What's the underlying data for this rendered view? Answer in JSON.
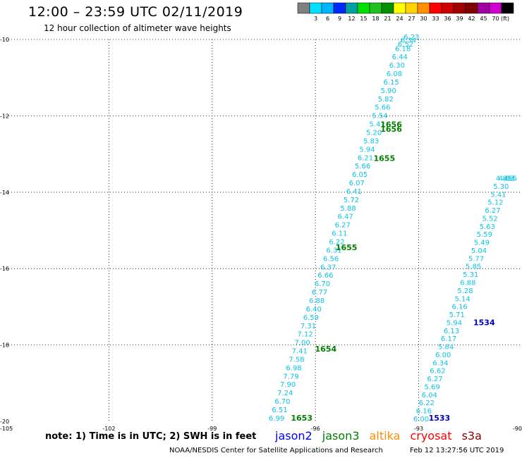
{
  "header": {
    "title": "12:00 – 23:59 UTC 02/11/2019",
    "subtitle": "12 hour collection of altimeter wave heights"
  },
  "colorbar": {
    "unit": "(ft)",
    "bins": [
      {
        "color": "#808080",
        "label": ""
      },
      {
        "color": "#00e0ff",
        "label": "3"
      },
      {
        "color": "#00b4ff",
        "label": "6"
      },
      {
        "color": "#0028ff",
        "label": "9"
      },
      {
        "color": "#00a0a0",
        "label": "12"
      },
      {
        "color": "#00e000",
        "label": "15"
      },
      {
        "color": "#20c020",
        "label": "18"
      },
      {
        "color": "#009000",
        "label": "21"
      },
      {
        "color": "#ffff00",
        "label": "24"
      },
      {
        "color": "#ffd200",
        "label": "27"
      },
      {
        "color": "#ff9000",
        "label": "30"
      },
      {
        "color": "#ff0000",
        "label": "33"
      },
      {
        "color": "#d00000",
        "label": "36"
      },
      {
        "color": "#a00000",
        "label": "39"
      },
      {
        "color": "#800000",
        "label": "42"
      },
      {
        "color": "#a000a0",
        "label": "45"
      },
      {
        "color": "#d000d0",
        "label": "70"
      },
      {
        "color": "#000000",
        "label": ""
      }
    ]
  },
  "chart_data": {
    "type": "scatter",
    "title": "12:00 – 23:59 UTC 02/11/2019",
    "subtitle": "12 hour collection of altimeter wave heights",
    "xlim": [
      -105,
      -90
    ],
    "ylim": [
      -20,
      -10
    ],
    "x_ticks": [
      "-105",
      "-102",
      "-99",
      "-96",
      "-93",
      "-90"
    ],
    "y_ticks": [
      "-10",
      "-12",
      "-14",
      "-16",
      "-18",
      "-20"
    ],
    "grid": true,
    "value_color": "#0bc4e6",
    "tracks": [
      {
        "name": "track_west",
        "x": [
          -97.13,
          -97.04,
          -96.96,
          -96.88,
          -96.8,
          -96.71,
          -96.63,
          -96.55,
          -96.46,
          -96.38,
          -96.3,
          -96.21,
          -96.13,
          -96.05,
          -95.96,
          -95.88,
          -95.8,
          -95.71,
          -95.63,
          -95.55,
          -95.46,
          -95.38,
          -95.3,
          -95.21,
          -95.13,
          -95.05,
          -94.96,
          -94.88,
          -94.8,
          -94.71,
          -94.63,
          -94.55,
          -94.5,
          -94.38,
          -94.3,
          -94.21,
          -94.13,
          -94.05,
          -93.96,
          -93.88,
          -93.8,
          -93.71,
          -93.63,
          -93.55,
          -93.46,
          -93.38,
          -93.3,
          -93.21
        ],
        "y": [
          -19.98,
          -19.76,
          -19.54,
          -19.32,
          -19.1,
          -18.88,
          -18.66,
          -18.44,
          -18.22,
          -18.0,
          -17.78,
          -17.56,
          -17.34,
          -17.12,
          -16.9,
          -16.68,
          -16.46,
          -16.24,
          -16.02,
          -15.8,
          -15.58,
          -15.36,
          -15.14,
          -14.92,
          -14.7,
          -14.48,
          -14.26,
          -14.04,
          -13.82,
          -13.6,
          -13.38,
          -13.16,
          -12.94,
          -12.72,
          -12.5,
          -12.28,
          -12.06,
          -11.84,
          -11.62,
          -11.4,
          -11.18,
          -10.96,
          -10.74,
          -10.52,
          -10.3,
          -10.18,
          -10.08,
          -10.0
        ],
        "values": [
          "6.99",
          "6.51",
          "6.70",
          "7.24",
          "7.90",
          "7.79",
          "6.98",
          "7.58",
          "7.41",
          "7.00",
          "7.12",
          "7.31",
          "6.59",
          "6.40",
          "6.88",
          "6.77",
          "6.70",
          "6.66",
          "6.37",
          "6.56",
          "6.31",
          "6.22",
          "6.11",
          "6.27",
          "6.47",
          "5.88",
          "5.72",
          "6.41",
          "6.07",
          "6.05",
          "5.66",
          "6.21",
          "5.94",
          "5.83",
          "5.20",
          "5.41",
          "5.54",
          "5.66",
          "5.82",
          "5.90",
          "6.15",
          "6.08",
          "6.30",
          "6.44",
          "6.18",
          "6.52",
          "6.34",
          "6.23"
        ]
      },
      {
        "name": "track_east",
        "x": [
          -92.93,
          -92.85,
          -92.77,
          -92.69,
          -92.61,
          -92.53,
          -92.45,
          -92.37,
          -92.29,
          -92.21,
          -92.13,
          -92.05,
          -91.97,
          -91.89,
          -91.81,
          -91.73,
          -91.65,
          -91.57,
          -91.49,
          -91.41,
          -91.33,
          -91.25,
          -91.17,
          -91.09,
          -91.01,
          -90.93,
          -90.85,
          -90.77,
          -90.69,
          -90.61,
          -90.53,
          -90.45,
          -90.37,
          -90.29,
          -90.21
        ],
        "y": [
          -20.0,
          -19.79,
          -19.58,
          -19.37,
          -19.16,
          -18.95,
          -18.74,
          -18.53,
          -18.32,
          -18.11,
          -17.9,
          -17.69,
          -17.48,
          -17.27,
          -17.06,
          -16.85,
          -16.64,
          -16.43,
          -16.22,
          -16.01,
          -15.8,
          -15.59,
          -15.38,
          -15.17,
          -14.96,
          -14.75,
          -14.54,
          -14.33,
          -14.12,
          -13.91,
          -13.7,
          -13.7,
          -13.7,
          -13.7,
          -13.7
        ],
        "values": [
          "6.00",
          "6.16",
          "6.22",
          "6.04",
          "5.69",
          "6.27",
          "6.62",
          "6.34",
          "6.00",
          "5.84",
          "6.17",
          "6.13",
          "5.94",
          "5.71",
          "6.16",
          "5.14",
          "5.28",
          "6.88",
          "5.31",
          "5.85",
          "5.77",
          "5.04",
          "5.49",
          "5.59",
          "5.63",
          "5.52",
          "6.27",
          "5.12",
          "5.41",
          "5.30",
          "4.85",
          "4.67",
          "4.3",
          "5.",
          "5"
        ]
      }
    ],
    "time_labels": [
      {
        "text": "1653",
        "x": -96.4,
        "y": -19.98,
        "color": "#008000"
      },
      {
        "text": "1654",
        "x": -95.7,
        "y": -18.17,
        "color": "#008000"
      },
      {
        "text": "1655",
        "x": -95.1,
        "y": -15.52,
        "color": "#008000"
      },
      {
        "text": "1655",
        "x": -94.0,
        "y": -13.18,
        "color": "#008000"
      },
      {
        "text": "1656",
        "x": -93.8,
        "y": -12.42,
        "color": "#008000"
      },
      {
        "text": "1656",
        "x": -93.8,
        "y": -12.3,
        "color": "#008000"
      },
      {
        "text": "1533",
        "x": -92.4,
        "y": -19.98,
        "color": "#0000c0"
      },
      {
        "text": "1534",
        "x": -91.1,
        "y": -17.48,
        "color": "#0000c0"
      }
    ]
  },
  "footer": {
    "note": "note:  1) Time is in UTC;  2) SWH is in feet",
    "satellites": [
      {
        "name": "jason2",
        "color": "#0000ff"
      },
      {
        "name": "jason3",
        "color": "#008000"
      },
      {
        "name": "altika",
        "color": "#ff8c00"
      },
      {
        "name": "cryosat",
        "color": "#ff0000"
      },
      {
        "name": "s3a",
        "color": "#8b0000"
      }
    ],
    "credit": "NOAA/NESDIS Center for Satellite Applications and Research",
    "timestamp": "Feb 12 13:27:56 UTC 2019"
  }
}
